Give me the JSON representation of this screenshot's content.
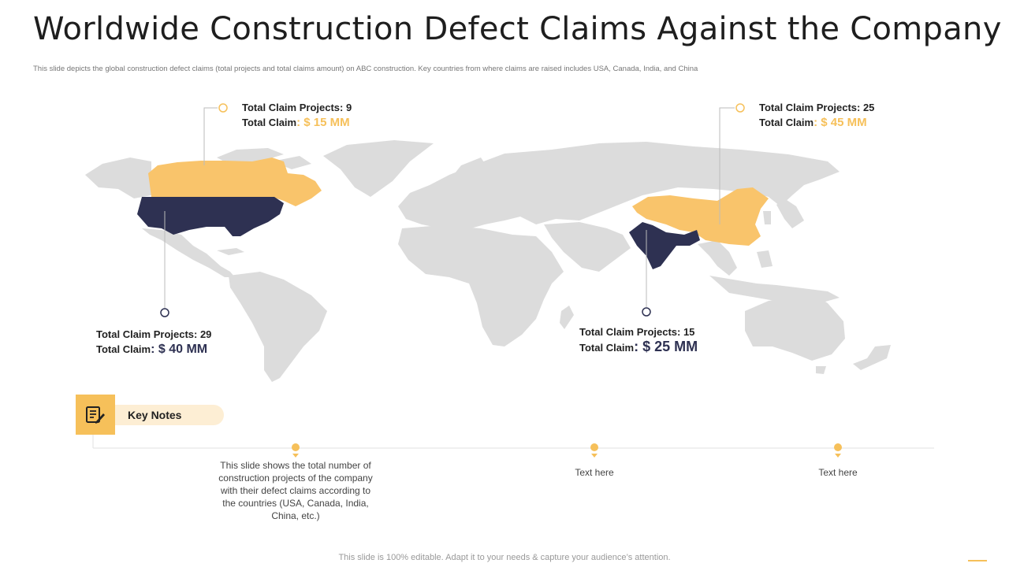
{
  "title": "Worldwide Construction Defect Claims Against the Company",
  "subtitle": "This slide depicts the global construction defect claims (total projects and total claims amount) on ABC construction. Key countries from where claims are raised includes USA, Canada, India,  and China",
  "colors": {
    "accent": "#f6c05a",
    "navy": "#2e3152",
    "land": "#dcdcdc"
  },
  "callouts": {
    "canada": {
      "projects": "Total Claim Projects:  9",
      "claim_label": "Total Claim",
      "claim_value": ": $ 15 MM"
    },
    "china": {
      "projects": "Total Claim Projects:  25",
      "claim_label": "Total Claim",
      "claim_value": ": $ 45 MM"
    },
    "usa": {
      "projects": "Total Claim Projects:  29",
      "claim_label": "Total Claim",
      "claim_value": ": $ 40 MM"
    },
    "india": {
      "projects": "Total Claim Projects:  15",
      "claim_label": "Total Claim",
      "claim_value": ": $ 25 MM"
    }
  },
  "key_notes": {
    "label": "Key Notes",
    "icon": "notepad-pencil-icon",
    "notes": [
      "This slide shows the total number of construction projects of the company with their defect claims according to the countries (USA, Canada, India, China, etc.)",
      "Text here",
      "Text here"
    ]
  },
  "footer": "This slide is 100% editable. Adapt it to your needs & capture your audience’s attention."
}
